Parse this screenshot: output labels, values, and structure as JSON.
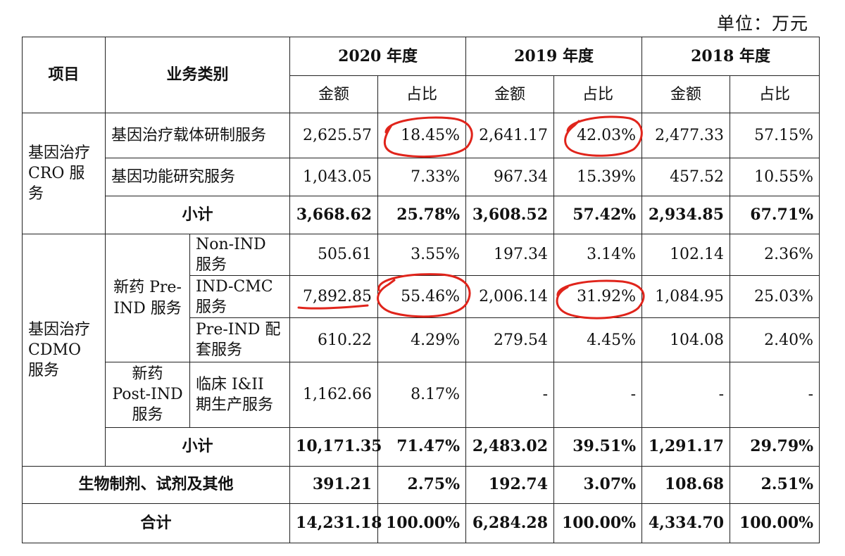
{
  "unit_label": "单位：万元",
  "headers": {
    "item": "项目",
    "category": "业务类别",
    "years": [
      "2020 年度",
      "2019 年度",
      "2018 年度"
    ],
    "amount": "金额",
    "ratio": "占比"
  },
  "cro": {
    "label": "基因治疗 CRO 服务",
    "rows": [
      {
        "name": "基因治疗载体研制服务",
        "values": [
          "2,625.57",
          "18.45%",
          "2,641.17",
          "42.03%",
          "2,477.33",
          "57.15%"
        ]
      },
      {
        "name": "基因功能研究服务",
        "values": [
          "1,043.05",
          "7.33%",
          "967.34",
          "15.39%",
          "457.52",
          "10.55%"
        ]
      }
    ],
    "subtotal": {
      "name": "小计",
      "values": [
        "3,668.62",
        "25.78%",
        "3,608.52",
        "57.42%",
        "2,934.85",
        "67.71%"
      ]
    }
  },
  "cdmo": {
    "label": "基因治疗 CDMO 服务",
    "pre_ind_label": "新药 Pre-IND 服务",
    "post_ind_label": "新药 Post-IND 服务",
    "rows": [
      {
        "name": "Non-IND 服务",
        "values": [
          "505.61",
          "3.55%",
          "197.34",
          "3.14%",
          "102.14",
          "2.36%"
        ]
      },
      {
        "name": "IND-CMC 服务",
        "values": [
          "7,892.85",
          "55.46%",
          "2,006.14",
          "31.92%",
          "1,084.95",
          "25.03%"
        ]
      },
      {
        "name": "Pre-IND 配套服务",
        "values": [
          "610.22",
          "4.29%",
          "279.54",
          "4.45%",
          "104.08",
          "2.40%"
        ]
      },
      {
        "name": "临床 I&II 期生产服务",
        "values": [
          "1,162.66",
          "8.17%",
          "-",
          "-",
          "-",
          "-"
        ]
      }
    ],
    "subtotal": {
      "name": "小计",
      "values": [
        "10,171.35",
        "71.47%",
        "2,483.02",
        "39.51%",
        "1,291.17",
        "29.79%"
      ]
    }
  },
  "other": {
    "name": "生物制剂、试剂及其他",
    "values": [
      "391.21",
      "2.75%",
      "192.74",
      "3.07%",
      "108.68",
      "2.51%"
    ]
  },
  "total": {
    "name": "合计",
    "values": [
      "14,231.18",
      "100.00%",
      "6,284.28",
      "100.00%",
      "4,334.70",
      "100.00%"
    ]
  },
  "annotation_color": "#e0241b"
}
